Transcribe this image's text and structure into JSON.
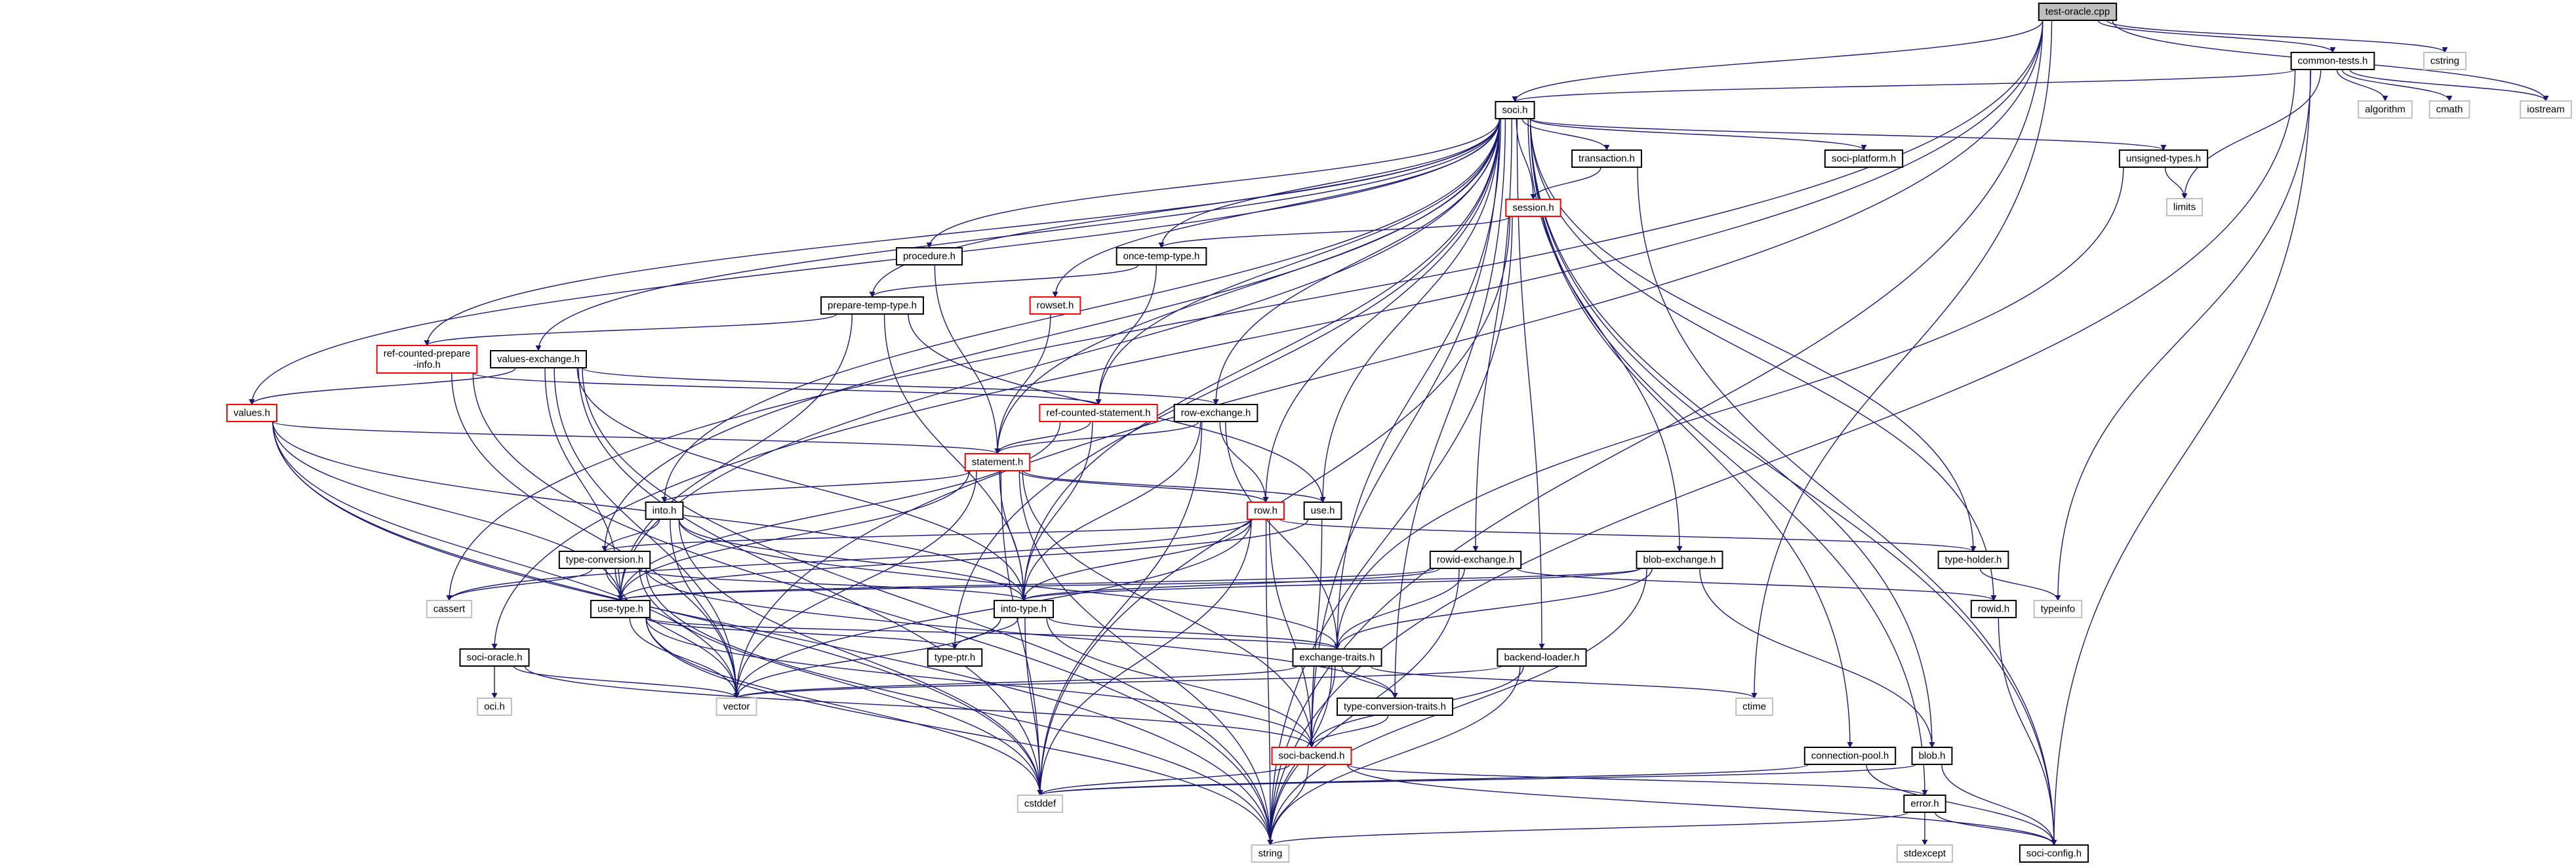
{
  "colors": {
    "edge": "#191970",
    "root_fill": "#bfbfbf",
    "node_border": "#000000",
    "incomplete_border": "#ff0000",
    "external_border": "#bfbfbf"
  },
  "nodes": [
    {
      "id": "test-oracle.cpp",
      "label": "test-oracle.cpp",
      "kind": "root"
    },
    {
      "id": "common-tests.h",
      "label": "common-tests.h",
      "kind": "normal"
    },
    {
      "id": "cstring",
      "label": "cstring",
      "kind": "external"
    },
    {
      "id": "algorithm",
      "label": "algorithm",
      "kind": "external"
    },
    {
      "id": "cmath",
      "label": "cmath",
      "kind": "external"
    },
    {
      "id": "iostream",
      "label": "iostream",
      "kind": "external"
    },
    {
      "id": "soci.h",
      "label": "soci.h",
      "kind": "normal"
    },
    {
      "id": "transaction.h",
      "label": "transaction.h",
      "kind": "normal"
    },
    {
      "id": "soci-platform.h",
      "label": "soci-platform.h",
      "kind": "normal"
    },
    {
      "id": "unsigned-types.h",
      "label": "unsigned-types.h",
      "kind": "normal"
    },
    {
      "id": "limits",
      "label": "limits",
      "kind": "external"
    },
    {
      "id": "session.h",
      "label": "session.h",
      "kind": "red"
    },
    {
      "id": "procedure.h",
      "label": "procedure.h",
      "kind": "normal"
    },
    {
      "id": "once-temp-type.h",
      "label": "once-temp-type.h",
      "kind": "normal"
    },
    {
      "id": "prepare-temp-type.h",
      "label": "prepare-temp-type.h",
      "kind": "normal"
    },
    {
      "id": "rowset.h",
      "label": "rowset.h",
      "kind": "red"
    },
    {
      "id": "ref-counted-prepare-info.h",
      "label": "ref-counted-prepare\n-info.h",
      "kind": "red"
    },
    {
      "id": "values-exchange.h",
      "label": "values-exchange.h",
      "kind": "normal"
    },
    {
      "id": "values.h",
      "label": "values.h",
      "kind": "red"
    },
    {
      "id": "ref-counted-statement.h",
      "label": "ref-counted-statement.h",
      "kind": "red"
    },
    {
      "id": "row-exchange.h",
      "label": "row-exchange.h",
      "kind": "normal"
    },
    {
      "id": "statement.h",
      "label": "statement.h",
      "kind": "red"
    },
    {
      "id": "into.h",
      "label": "into.h",
      "kind": "normal"
    },
    {
      "id": "row.h",
      "label": "row.h",
      "kind": "red"
    },
    {
      "id": "use.h",
      "label": "use.h",
      "kind": "normal"
    },
    {
      "id": "type-conversion.h",
      "label": "type-conversion.h",
      "kind": "normal"
    },
    {
      "id": "rowid-exchange.h",
      "label": "rowid-exchange.h",
      "kind": "normal"
    },
    {
      "id": "blob-exchange.h",
      "label": "blob-exchange.h",
      "kind": "normal"
    },
    {
      "id": "type-holder.h",
      "label": "type-holder.h",
      "kind": "normal"
    },
    {
      "id": "cassert",
      "label": "cassert",
      "kind": "external"
    },
    {
      "id": "use-type.h",
      "label": "use-type.h",
      "kind": "normal"
    },
    {
      "id": "into-type.h",
      "label": "into-type.h",
      "kind": "normal"
    },
    {
      "id": "rowid.h",
      "label": "rowid.h",
      "kind": "normal"
    },
    {
      "id": "typeinfo",
      "label": "typeinfo",
      "kind": "external"
    },
    {
      "id": "soci-oracle.h",
      "label": "soci-oracle.h",
      "kind": "normal"
    },
    {
      "id": "type-ptr.h",
      "label": "type-ptr.h",
      "kind": "normal"
    },
    {
      "id": "exchange-traits.h",
      "label": "exchange-traits.h",
      "kind": "normal"
    },
    {
      "id": "backend-loader.h",
      "label": "backend-loader.h",
      "kind": "normal"
    },
    {
      "id": "oci.h",
      "label": "oci.h",
      "kind": "external"
    },
    {
      "id": "vector",
      "label": "vector",
      "kind": "external"
    },
    {
      "id": "type-conversion-traits.h",
      "label": "type-conversion-traits.h",
      "kind": "normal"
    },
    {
      "id": "ctime",
      "label": "ctime",
      "kind": "external"
    },
    {
      "id": "soci-backend.h",
      "label": "soci-backend.h",
      "kind": "red"
    },
    {
      "id": "connection-pool.h",
      "label": "connection-pool.h",
      "kind": "normal"
    },
    {
      "id": "blob.h",
      "label": "blob.h",
      "kind": "normal"
    },
    {
      "id": "cstddef",
      "label": "cstddef",
      "kind": "external"
    },
    {
      "id": "error.h",
      "label": "error.h",
      "kind": "normal"
    },
    {
      "id": "string",
      "label": "string",
      "kind": "external"
    },
    {
      "id": "stdexcept",
      "label": "stdexcept",
      "kind": "external"
    },
    {
      "id": "soci-config.h",
      "label": "soci-config.h",
      "kind": "normal"
    }
  ],
  "edges": [
    [
      "test-oracle.cpp",
      "soci.h"
    ],
    [
      "test-oracle.cpp",
      "common-tests.h"
    ],
    [
      "test-oracle.cpp",
      "cstring"
    ],
    [
      "test-oracle.cpp",
      "iostream"
    ],
    [
      "test-oracle.cpp",
      "string"
    ],
    [
      "test-oracle.cpp",
      "vector"
    ],
    [
      "test-oracle.cpp",
      "cassert"
    ],
    [
      "test-oracle.cpp",
      "ctime"
    ],
    [
      "test-oracle.cpp",
      "soci-oracle.h"
    ],
    [
      "common-tests.h",
      "soci.h"
    ],
    [
      "common-tests.h",
      "algorithm"
    ],
    [
      "common-tests.h",
      "cmath"
    ],
    [
      "common-tests.h",
      "iostream"
    ],
    [
      "common-tests.h",
      "limits"
    ],
    [
      "common-tests.h",
      "typeinfo"
    ],
    [
      "common-tests.h",
      "string"
    ],
    [
      "common-tests.h",
      "soci-config.h"
    ],
    [
      "soci.h",
      "backend-loader.h"
    ],
    [
      "soci.h",
      "blob.h"
    ],
    [
      "soci.h",
      "blob-exchange.h"
    ],
    [
      "soci.h",
      "connection-pool.h"
    ],
    [
      "soci.h",
      "error.h"
    ],
    [
      "soci.h",
      "exchange-traits.h"
    ],
    [
      "soci.h",
      "into.h"
    ],
    [
      "soci.h",
      "into-type.h"
    ],
    [
      "soci.h",
      "once-temp-type.h"
    ],
    [
      "soci.h",
      "prepare-temp-type.h"
    ],
    [
      "soci.h",
      "procedure.h"
    ],
    [
      "soci.h",
      "ref-counted-prepare-info.h"
    ],
    [
      "soci.h",
      "ref-counted-statement.h"
    ],
    [
      "soci.h",
      "row.h"
    ],
    [
      "soci.h",
      "row-exchange.h"
    ],
    [
      "soci.h",
      "rowid.h"
    ],
    [
      "soci.h",
      "rowid-exchange.h"
    ],
    [
      "soci.h",
      "rowset.h"
    ],
    [
      "soci.h",
      "session.h"
    ],
    [
      "soci.h",
      "soci-backend.h"
    ],
    [
      "soci.h",
      "soci-config.h"
    ],
    [
      "soci.h",
      "soci-platform.h"
    ],
    [
      "soci.h",
      "statement.h"
    ],
    [
      "soci.h",
      "transaction.h"
    ],
    [
      "soci.h",
      "type-conversion.h"
    ],
    [
      "soci.h",
      "type-conversion-traits.h"
    ],
    [
      "soci.h",
      "type-holder.h"
    ],
    [
      "soci.h",
      "type-ptr.h"
    ],
    [
      "soci.h",
      "unsigned-types.h"
    ],
    [
      "soci.h",
      "use.h"
    ],
    [
      "soci.h",
      "use-type.h"
    ],
    [
      "soci.h",
      "values.h"
    ],
    [
      "soci.h",
      "values-exchange.h"
    ],
    [
      "transaction.h",
      "session.h"
    ],
    [
      "transaction.h",
      "soci-config.h"
    ],
    [
      "session.h",
      "once-temp-type.h"
    ],
    [
      "session.h",
      "cstddef"
    ],
    [
      "session.h",
      "string"
    ],
    [
      "once-temp-type.h",
      "prepare-temp-type.h"
    ],
    [
      "once-temp-type.h",
      "ref-counted-statement.h"
    ],
    [
      "prepare-temp-type.h",
      "ref-counted-prepare-info.h"
    ],
    [
      "prepare-temp-type.h",
      "into-type.h"
    ],
    [
      "prepare-temp-type.h",
      "use-type.h"
    ],
    [
      "prepare-temp-type.h",
      "use.h"
    ],
    [
      "procedure.h",
      "statement.h"
    ],
    [
      "rowset.h",
      "statement.h"
    ],
    [
      "ref-counted-prepare-info.h",
      "ref-counted-statement.h"
    ],
    [
      "ref-counted-prepare-info.h",
      "vector"
    ],
    [
      "ref-counted-prepare-info.h",
      "string"
    ],
    [
      "values-exchange.h",
      "values.h"
    ],
    [
      "values-exchange.h",
      "row-exchange.h"
    ],
    [
      "values-exchange.h",
      "into-type.h"
    ],
    [
      "values-exchange.h",
      "use-type.h"
    ],
    [
      "values-exchange.h",
      "cstddef"
    ],
    [
      "values-exchange.h",
      "string"
    ],
    [
      "values-exchange.h",
      "vector"
    ],
    [
      "values.h",
      "statement.h"
    ],
    [
      "values.h",
      "into-type.h"
    ],
    [
      "values.h",
      "use-type.h"
    ],
    [
      "values.h",
      "string"
    ],
    [
      "values.h",
      "cstddef"
    ],
    [
      "values.h",
      "vector"
    ],
    [
      "ref-counted-statement.h",
      "statement.h"
    ],
    [
      "ref-counted-statement.h",
      "into-type.h"
    ],
    [
      "ref-counted-statement.h",
      "use-type.h"
    ],
    [
      "row-exchange.h",
      "row.h"
    ],
    [
      "row-exchange.h",
      "statement.h"
    ],
    [
      "row-exchange.h",
      "into-type.h"
    ],
    [
      "row-exchange.h",
      "exchange-traits.h"
    ],
    [
      "row-exchange.h",
      "cstddef"
    ],
    [
      "statement.h",
      "into.h"
    ],
    [
      "statement.h",
      "row.h"
    ],
    [
      "statement.h",
      "use.h"
    ],
    [
      "statement.h",
      "into-type.h"
    ],
    [
      "statement.h",
      "use-type.h"
    ],
    [
      "statement.h",
      "soci-backend.h"
    ],
    [
      "statement.h",
      "string"
    ],
    [
      "statement.h",
      "vector"
    ],
    [
      "statement.h",
      "cstddef"
    ],
    [
      "into.h",
      "type-conversion.h"
    ],
    [
      "into.h",
      "into-type.h"
    ],
    [
      "into.h",
      "exchange-traits.h"
    ],
    [
      "into.h",
      "vector"
    ],
    [
      "into.h",
      "cstddef"
    ],
    [
      "row.h",
      "type-holder.h"
    ],
    [
      "row.h",
      "type-conversion.h"
    ],
    [
      "row.h",
      "soci-backend.h"
    ],
    [
      "row.h",
      "into-type.h"
    ],
    [
      "row.h",
      "cassert"
    ],
    [
      "row.h",
      "string"
    ],
    [
      "row.h",
      "vector"
    ],
    [
      "row.h",
      "cstddef"
    ],
    [
      "use.h",
      "soci-backend.h"
    ],
    [
      "use.h",
      "use-type.h"
    ],
    [
      "type-conversion.h",
      "into-type.h"
    ],
    [
      "type-conversion.h",
      "use-type.h"
    ],
    [
      "type-conversion.h",
      "type-conversion-traits.h"
    ],
    [
      "type-conversion.h",
      "cassert"
    ],
    [
      "type-conversion.h",
      "string"
    ],
    [
      "type-conversion.h",
      "vector"
    ],
    [
      "type-conversion.h",
      "cstddef"
    ],
    [
      "rowid-exchange.h",
      "rowid.h"
    ],
    [
      "rowid-exchange.h",
      "into-type.h"
    ],
    [
      "rowid-exchange.h",
      "use-type.h"
    ],
    [
      "rowid-exchange.h",
      "exchange-traits.h"
    ],
    [
      "rowid-exchange.h",
      "string"
    ],
    [
      "blob-exchange.h",
      "blob.h"
    ],
    [
      "blob-exchange.h",
      "into-type.h"
    ],
    [
      "blob-exchange.h",
      "use-type.h"
    ],
    [
      "blob-exchange.h",
      "exchange-traits.h"
    ],
    [
      "blob-exchange.h",
      "string"
    ],
    [
      "use-type.h",
      "soci-backend.h"
    ],
    [
      "use-type.h",
      "exchange-traits.h"
    ],
    [
      "use-type.h",
      "type-ptr.h"
    ],
    [
      "use-type.h",
      "vector"
    ],
    [
      "use-type.h",
      "string"
    ],
    [
      "use-type.h",
      "cstddef"
    ],
    [
      "into-type.h",
      "soci-backend.h"
    ],
    [
      "into-type.h",
      "type-ptr.h"
    ],
    [
      "into-type.h",
      "exchange-traits.h"
    ],
    [
      "into-type.h",
      "vector"
    ],
    [
      "into-type.h",
      "cstddef"
    ],
    [
      "soci-oracle.h",
      "oci.h"
    ],
    [
      "soci-oracle.h",
      "vector"
    ],
    [
      "soci-oracle.h",
      "soci-backend.h"
    ],
    [
      "exchange-traits.h",
      "type-conversion-traits.h"
    ],
    [
      "exchange-traits.h",
      "soci-backend.h"
    ],
    [
      "exchange-traits.h",
      "ctime"
    ],
    [
      "exchange-traits.h",
      "vector"
    ],
    [
      "exchange-traits.h",
      "string"
    ],
    [
      "backend-loader.h",
      "soci-backend.h"
    ],
    [
      "backend-loader.h",
      "string"
    ],
    [
      "backend-loader.h",
      "vector"
    ],
    [
      "type-conversion-traits.h",
      "soci-backend.h"
    ],
    [
      "soci-backend.h",
      "error.h"
    ],
    [
      "soci-backend.h",
      "soci-config.h"
    ],
    [
      "soci-backend.h",
      "cstddef"
    ],
    [
      "soci-backend.h",
      "string"
    ],
    [
      "connection-pool.h",
      "cstddef"
    ],
    [
      "connection-pool.h",
      "soci-config.h"
    ],
    [
      "blob.h",
      "cstddef"
    ],
    [
      "blob.h",
      "soci-config.h"
    ],
    [
      "error.h",
      "soci-config.h"
    ],
    [
      "error.h",
      "stdexcept"
    ],
    [
      "error.h",
      "string"
    ],
    [
      "type-holder.h",
      "typeinfo"
    ],
    [
      "rowid.h",
      "soci-config.h"
    ],
    [
      "unsigned-types.h",
      "limits"
    ],
    [
      "unsigned-types.h",
      "exchange-traits.h"
    ]
  ]
}
